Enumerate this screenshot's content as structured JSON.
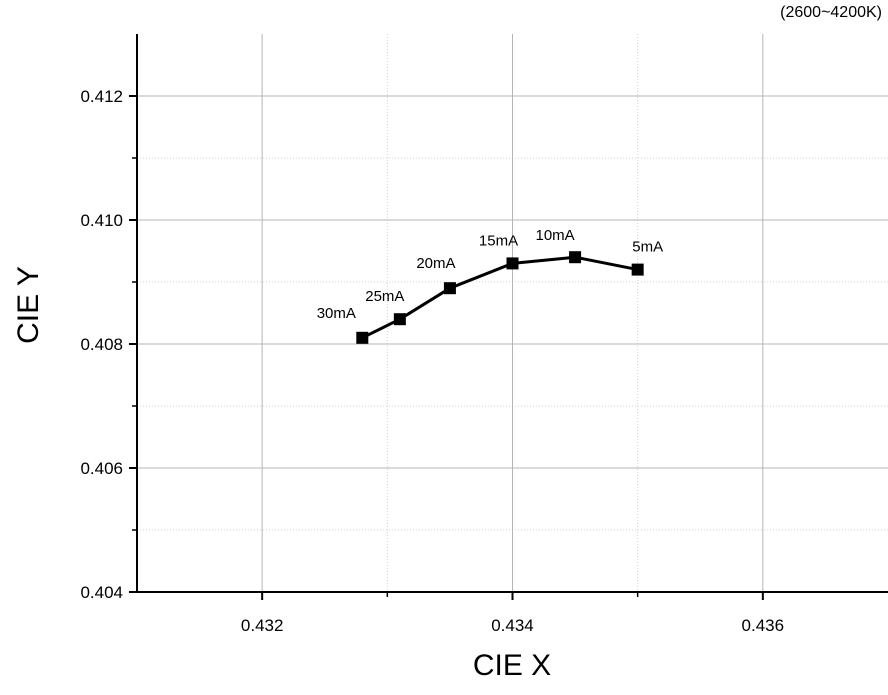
{
  "chart_data": {
    "type": "line",
    "corner_note": "(2600~4200K)",
    "xlabel": "CIE X",
    "ylabel": "CIE Y",
    "xlim": [
      0.431,
      0.437
    ],
    "ylim": [
      0.404,
      0.413
    ],
    "x_ticks": [
      0.432,
      0.434,
      0.436
    ],
    "y_ticks": [
      0.404,
      0.406,
      0.408,
      0.41,
      0.412
    ],
    "x_tick_labels": [
      "0.432",
      "0.434",
      "0.436"
    ],
    "y_tick_labels": [
      "0.404",
      "0.406",
      "0.408",
      "0.410",
      "0.412"
    ],
    "grid": true,
    "series": [
      {
        "x": [
          0.4328,
          0.4331,
          0.4335,
          0.434,
          0.4345,
          0.435
        ],
        "y": [
          0.4081,
          0.4084,
          0.4089,
          0.4093,
          0.4094,
          0.4092
        ],
        "point_labels": [
          "30mA",
          "25mA",
          "20mA",
          "15mA",
          "10mA",
          "5mA"
        ],
        "color": "#000000",
        "marker": "square"
      }
    ]
  }
}
